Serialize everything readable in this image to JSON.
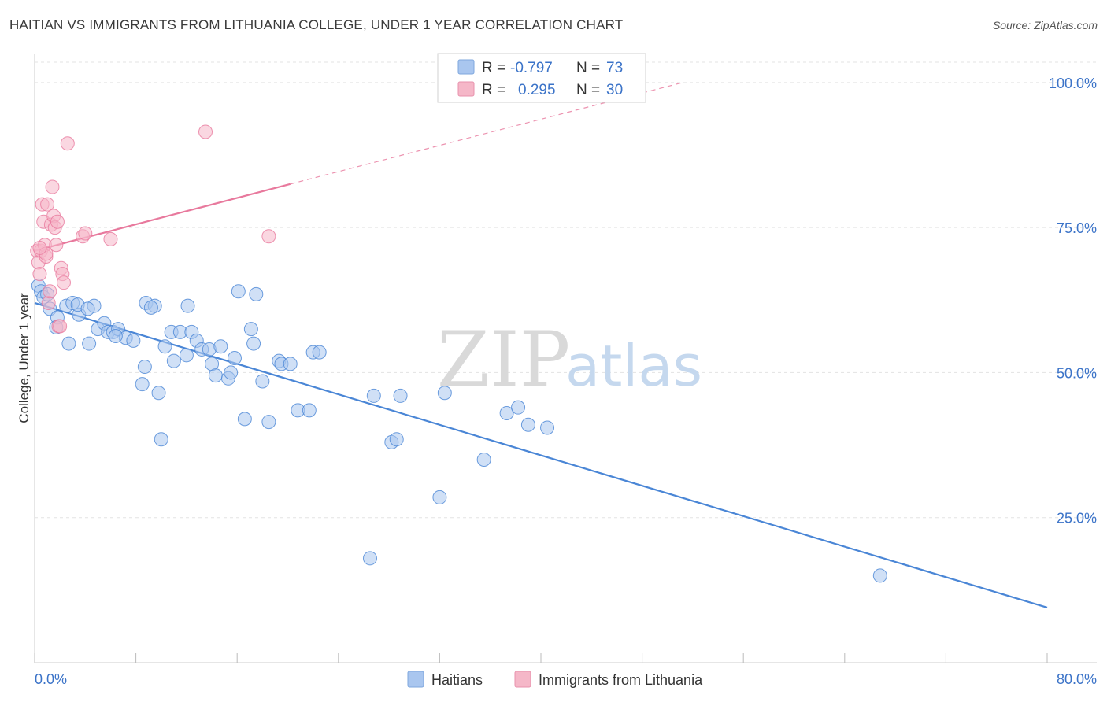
{
  "header": {
    "title": "HAITIAN VS IMMIGRANTS FROM LITHUANIA COLLEGE, UNDER 1 YEAR CORRELATION CHART",
    "source": "Source: ZipAtlas.com"
  },
  "watermark": {
    "zip": "ZIP",
    "atlas": "atlas"
  },
  "legend": {
    "rows": [
      {
        "r_label": "R = ",
        "r_value": "-0.797",
        "n_label": "N = ",
        "n_value": "73",
        "color": "#a9c6ef"
      },
      {
        "r_label": "R = ",
        "r_value": "0.295",
        "n_label": "N = ",
        "n_value": "30",
        "color": "#f5b7c8"
      }
    ]
  },
  "bottom_legend": [
    {
      "label": "Haitians",
      "color": "#a9c6ef"
    },
    {
      "label": "Immigrants from Lithuania",
      "color": "#f5b7c8"
    }
  ],
  "chart_data": {
    "type": "scatter",
    "ylabel": "College, Under 1 year",
    "xlim": [
      0,
      80
    ],
    "ylim": [
      0,
      105
    ],
    "x_tick_labels": [
      "0.0%",
      "80.0%"
    ],
    "y_ticks": [
      25,
      50,
      75,
      100
    ],
    "y_tick_labels": [
      "25.0%",
      "50.0%",
      "75.0%",
      "100.0%"
    ],
    "grid": true,
    "series": [
      {
        "name": "Haitians",
        "color": "#4a86d6",
        "fill": "#a9c6ef",
        "trend": {
          "x": [
            0,
            80
          ],
          "y": [
            62,
            9.5
          ]
        },
        "points": [
          [
            0.3,
            65
          ],
          [
            0.5,
            64
          ],
          [
            0.7,
            63
          ],
          [
            1.0,
            63.5
          ],
          [
            1.2,
            61
          ],
          [
            1.8,
            59.5
          ],
          [
            2.5,
            61.5
          ],
          [
            3.0,
            62
          ],
          [
            2.7,
            55
          ],
          [
            3.5,
            60
          ],
          [
            4.3,
            55
          ],
          [
            4.7,
            61.5
          ],
          [
            5.0,
            57.5
          ],
          [
            5.5,
            58.5
          ],
          [
            5.8,
            57
          ],
          [
            6.2,
            57
          ],
          [
            6.6,
            57.5
          ],
          [
            7.2,
            56
          ],
          [
            7.8,
            55.5
          ],
          [
            8.5,
            48
          ],
          [
            8.7,
            51
          ],
          [
            8.8,
            62
          ],
          [
            9.5,
            61.5
          ],
          [
            9.8,
            46.5
          ],
          [
            10.0,
            38.5
          ],
          [
            10.3,
            54.5
          ],
          [
            10.8,
            57
          ],
          [
            11.0,
            52
          ],
          [
            11.5,
            57
          ],
          [
            12.0,
            53
          ],
          [
            12.1,
            61.5
          ],
          [
            12.4,
            57
          ],
          [
            12.8,
            55.5
          ],
          [
            13.2,
            54
          ],
          [
            13.8,
            54
          ],
          [
            14.0,
            51.5
          ],
          [
            14.3,
            49.5
          ],
          [
            14.7,
            54.5
          ],
          [
            15.3,
            49
          ],
          [
            15.5,
            50
          ],
          [
            15.8,
            52.5
          ],
          [
            16.1,
            64
          ],
          [
            16.6,
            42
          ],
          [
            17.1,
            57.5
          ],
          [
            17.3,
            55
          ],
          [
            17.5,
            63.5
          ],
          [
            18.0,
            48.5
          ],
          [
            18.5,
            41.5
          ],
          [
            19.3,
            52
          ],
          [
            19.5,
            51.5
          ],
          [
            20.2,
            51.5
          ],
          [
            20.8,
            43.5
          ],
          [
            21.7,
            43.5
          ],
          [
            22.0,
            53.5
          ],
          [
            22.5,
            53.5
          ],
          [
            26.5,
            18
          ],
          [
            26.8,
            46
          ],
          [
            28.2,
            38
          ],
          [
            28.6,
            38.5
          ],
          [
            28.9,
            46
          ],
          [
            32.0,
            28.5
          ],
          [
            32.4,
            46.5
          ],
          [
            35.5,
            35
          ],
          [
            37.3,
            43
          ],
          [
            38.2,
            44
          ],
          [
            39.0,
            41
          ],
          [
            40.5,
            40.5
          ],
          [
            66.8,
            15
          ],
          [
            3.4,
            61.7
          ],
          [
            9.2,
            61.2
          ],
          [
            1.7,
            57.8
          ],
          [
            6.4,
            56.3
          ],
          [
            4.2,
            61.0
          ]
        ]
      },
      {
        "name": "Immigrants from Lithuania",
        "color": "#e8799d",
        "fill": "#f5b7c8",
        "trend": {
          "x": [
            0,
            20.2
          ],
          "y": [
            71,
            82.5
          ]
        },
        "trend_ext": {
          "x": [
            20.2,
            51.2
          ],
          "y": [
            82.5,
            100
          ]
        },
        "points": [
          [
            0.2,
            71
          ],
          [
            0.3,
            69
          ],
          [
            0.4,
            67
          ],
          [
            0.5,
            71
          ],
          [
            0.6,
            79
          ],
          [
            0.7,
            76
          ],
          [
            0.8,
            72
          ],
          [
            0.9,
            70
          ],
          [
            1.0,
            79
          ],
          [
            1.1,
            62
          ],
          [
            1.2,
            64
          ],
          [
            1.3,
            75.5
          ],
          [
            1.4,
            82
          ],
          [
            1.5,
            77
          ],
          [
            1.6,
            75
          ],
          [
            1.7,
            72
          ],
          [
            1.8,
            76
          ],
          [
            1.9,
            58
          ],
          [
            2.0,
            58
          ],
          [
            2.1,
            68
          ],
          [
            2.2,
            67
          ],
          [
            2.3,
            65.5
          ],
          [
            2.6,
            89.5
          ],
          [
            3.8,
            73.5
          ],
          [
            4.0,
            74
          ],
          [
            6.0,
            73
          ],
          [
            13.5,
            91.5
          ],
          [
            18.5,
            73.5
          ],
          [
            0.9,
            70.5
          ],
          [
            0.4,
            71.5
          ]
        ]
      }
    ]
  }
}
